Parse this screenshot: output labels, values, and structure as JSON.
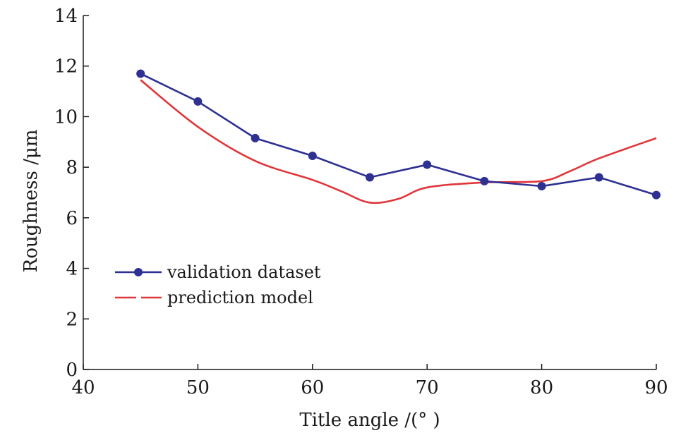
{
  "chart_data": {
    "type": "line",
    "title": "",
    "xlabel": "Title angle /(° )",
    "ylabel": "Roughness /μm",
    "xlim": [
      40,
      90
    ],
    "ylim": [
      0,
      14
    ],
    "x_ticks": [
      40,
      50,
      60,
      70,
      80,
      90
    ],
    "y_ticks": [
      0,
      2,
      4,
      6,
      8,
      10,
      12,
      14
    ],
    "grid": false,
    "legend_position": "center-left",
    "series": [
      {
        "name": "validation dataset",
        "color": "#2e3192",
        "marker": "circle",
        "style": "solid",
        "x": [
          45,
          50,
          55,
          60,
          65,
          70,
          75,
          80,
          85,
          90
        ],
        "y": [
          11.7,
          10.6,
          9.15,
          8.45,
          7.6,
          8.1,
          7.45,
          7.25,
          7.6,
          6.9
        ]
      },
      {
        "name": "prediction model",
        "color": "#e0363a",
        "marker": "none",
        "style": "smooth",
        "x": [
          45,
          50,
          55,
          60,
          62.5,
          65,
          67.5,
          70,
          75,
          80,
          82.5,
          85,
          90
        ],
        "y": [
          11.45,
          9.6,
          8.25,
          7.5,
          7.05,
          6.6,
          6.75,
          7.2,
          7.4,
          7.45,
          7.85,
          8.35,
          9.15
        ]
      }
    ]
  }
}
